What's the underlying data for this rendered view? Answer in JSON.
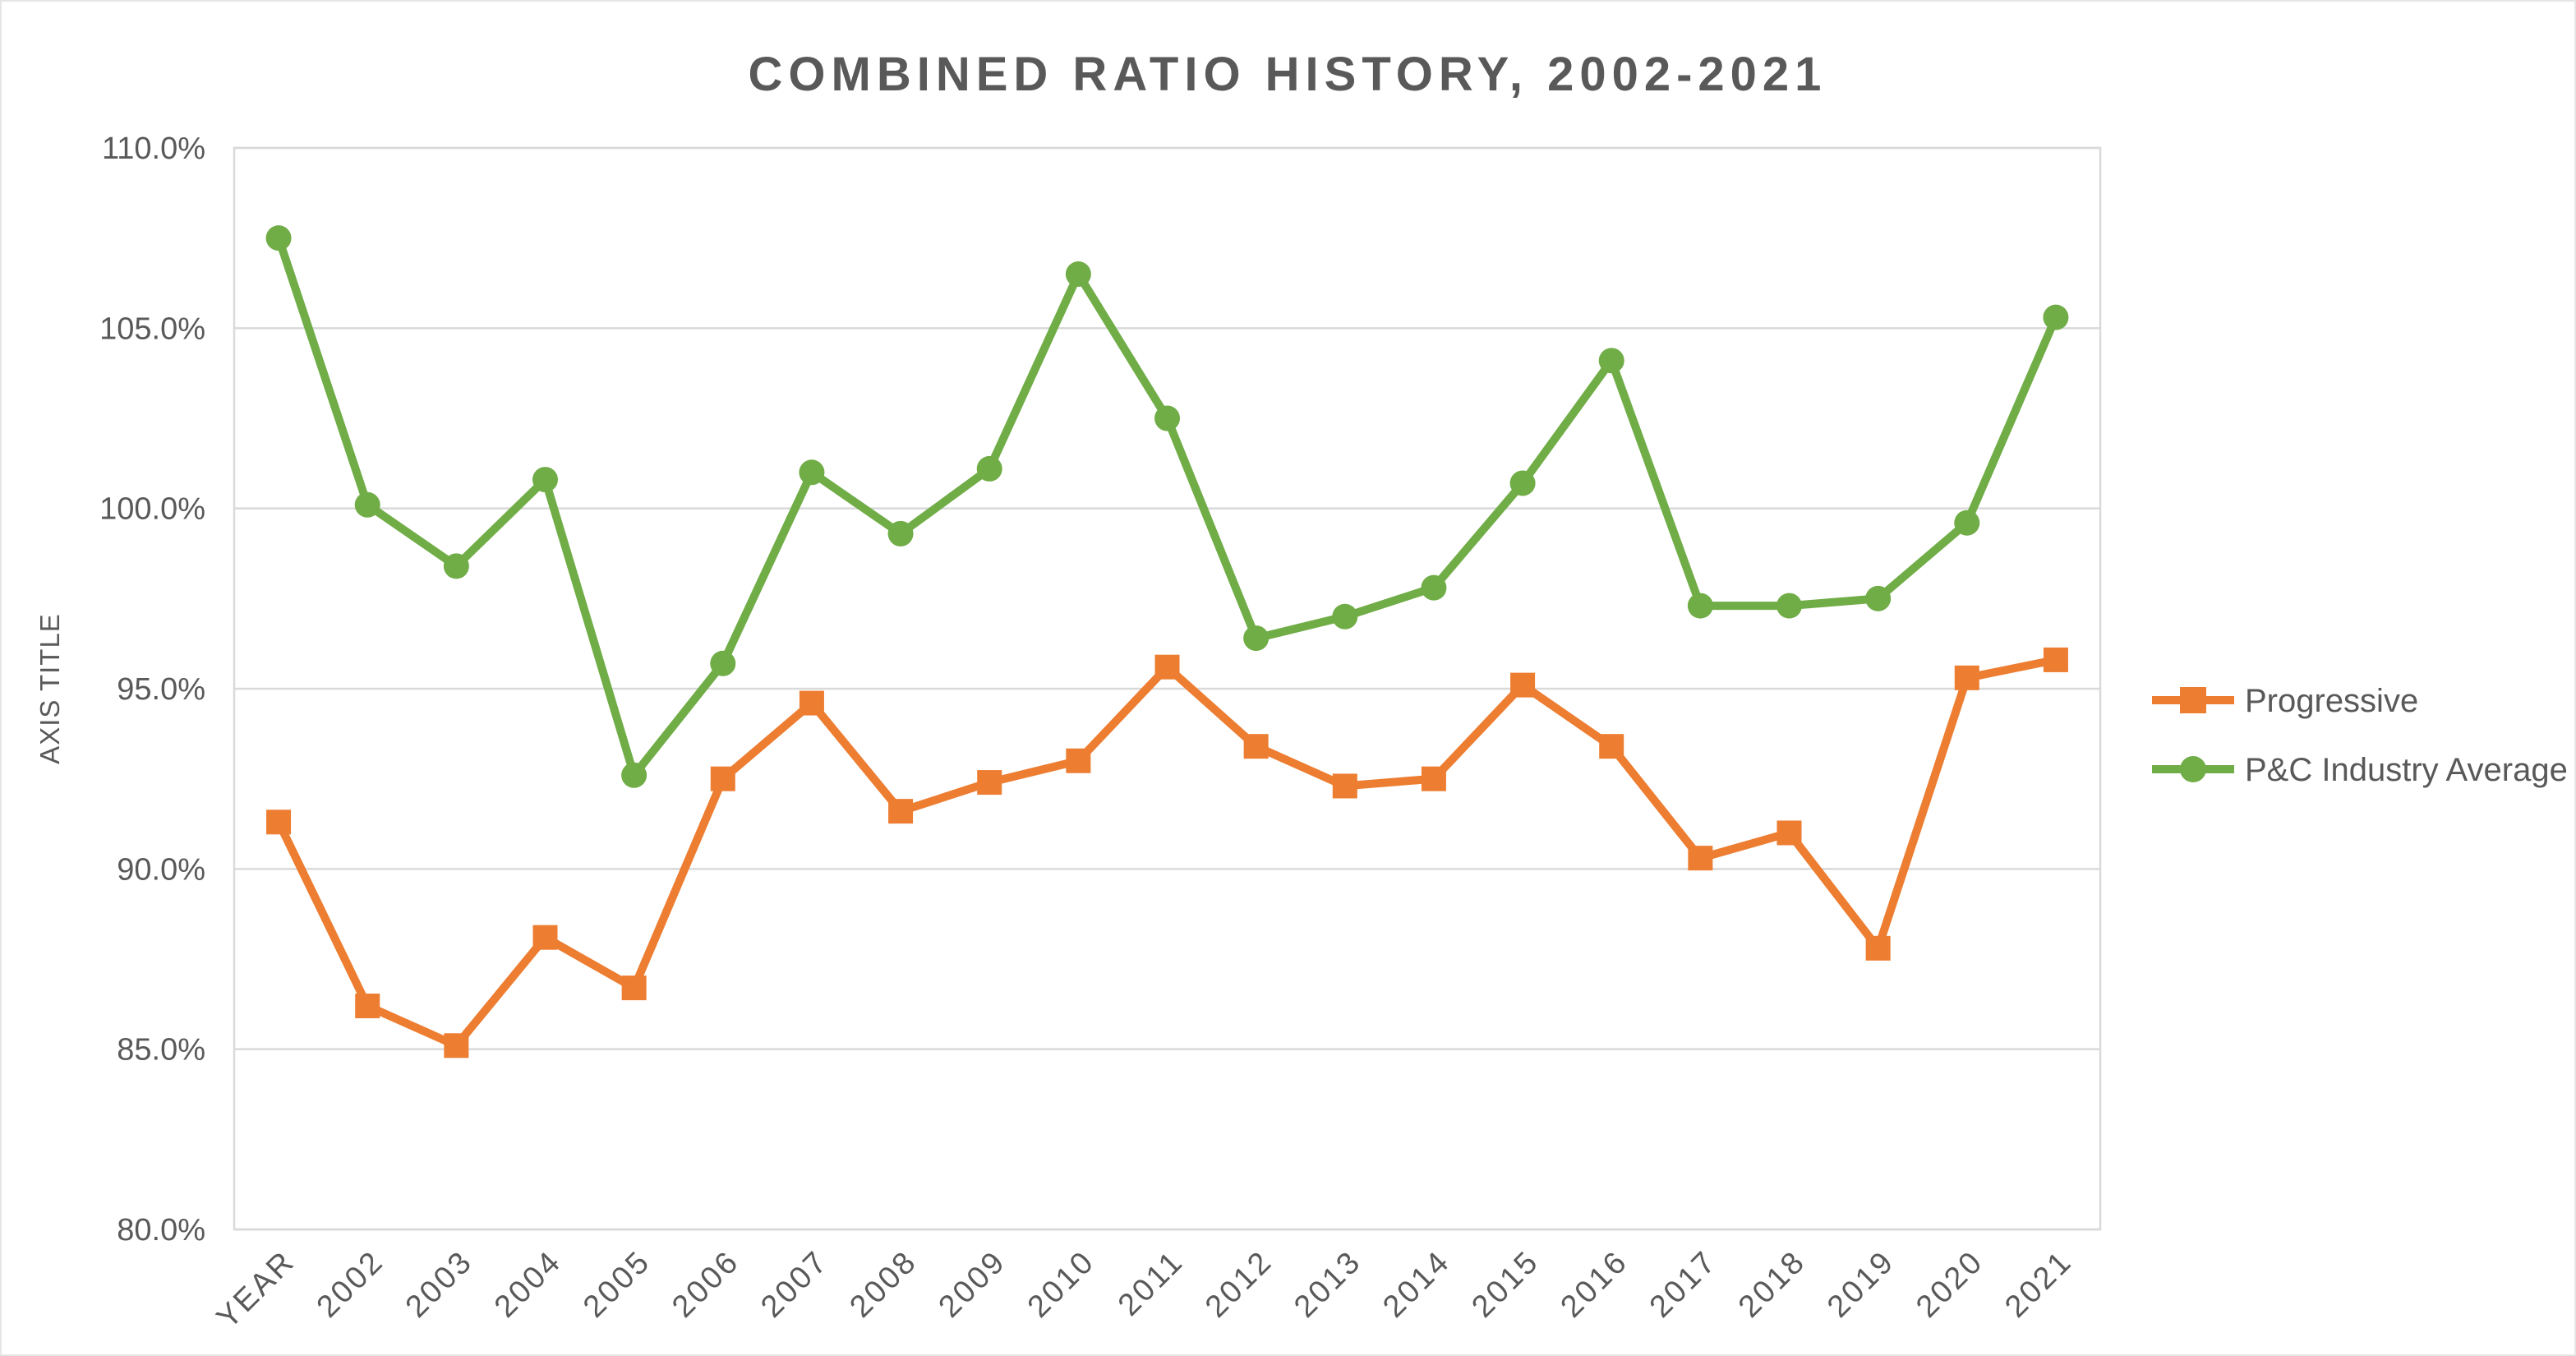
{
  "title": "COMBINED RATIO HISTORY, 2002-2021",
  "y_axis": {
    "title": "AXIS TITLE",
    "min": 80,
    "max": 110,
    "step": 5,
    "tick_labels": [
      "80.0%",
      "85.0%",
      "90.0%",
      "95.0%",
      "100.0%",
      "105.0%",
      "110.0%"
    ]
  },
  "x_axis": {
    "categories": [
      "YEAR",
      "2002",
      "2003",
      "2004",
      "2005",
      "2006",
      "2007",
      "2008",
      "2009",
      "2010",
      "2011",
      "2012",
      "2013",
      "2014",
      "2015",
      "2016",
      "2017",
      "2018",
      "2019",
      "2020",
      "2021"
    ]
  },
  "legend": {
    "position": "right",
    "items": [
      "Progressive",
      "P&C Industry Average"
    ]
  },
  "colors": {
    "progressive": "#ED7D31",
    "industry_average": "#70AD47",
    "gridline": "#D9D9D9",
    "text": "#595959",
    "background": "#FFFFFF"
  },
  "chart_data": {
    "type": "line",
    "title": "COMBINED RATIO HISTORY, 2002-2021",
    "xlabel": "",
    "ylabel": "AXIS TITLE",
    "ylim": [
      80,
      110
    ],
    "ytick_step": 5,
    "ytick_suffix": "%",
    "grid": true,
    "legend_position": "right",
    "categories": [
      "YEAR",
      "2002",
      "2003",
      "2004",
      "2005",
      "2006",
      "2007",
      "2008",
      "2009",
      "2010",
      "2011",
      "2012",
      "2013",
      "2014",
      "2015",
      "2016",
      "2017",
      "2018",
      "2019",
      "2020",
      "2021"
    ],
    "series": [
      {
        "name": "Progressive",
        "color": "#ED7D31",
        "marker": "square",
        "values": [
          91.3,
          86.2,
          85.1,
          88.1,
          86.7,
          92.5,
          94.6,
          91.6,
          92.4,
          93.0,
          95.6,
          93.4,
          92.3,
          92.5,
          95.1,
          93.4,
          90.3,
          91.0,
          87.8,
          95.3,
          95.8
        ]
      },
      {
        "name": "P&C Industry Average",
        "color": "#70AD47",
        "marker": "circle",
        "values": [
          107.5,
          100.1,
          98.4,
          100.8,
          92.6,
          95.7,
          101.0,
          99.3,
          101.1,
          106.5,
          102.5,
          96.4,
          97.0,
          97.8,
          100.7,
          104.1,
          97.3,
          97.3,
          97.5,
          99.6,
          105.3
        ]
      }
    ]
  }
}
